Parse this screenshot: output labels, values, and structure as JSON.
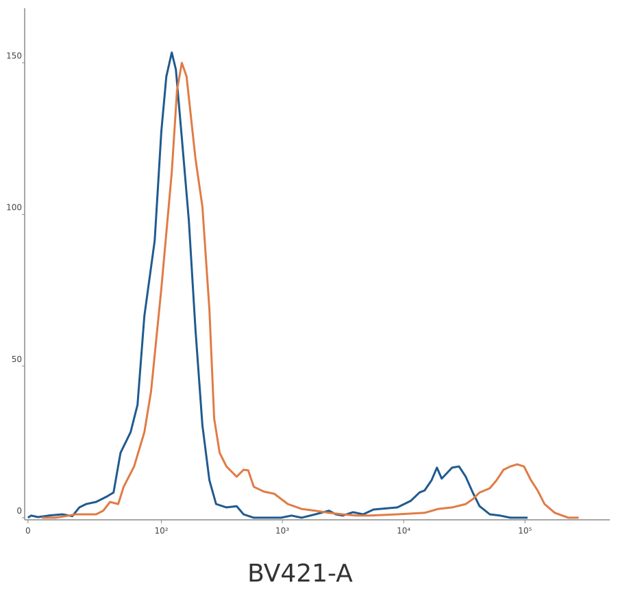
{
  "chart_data": {
    "type": "line",
    "x_label": "BV421-A",
    "xlim": [
      -1,
      500000
    ],
    "xticks": [
      0,
      {
        "value": 100,
        "label": "10²"
      },
      {
        "value": 1000,
        "label": "10³"
      },
      {
        "value": 10000,
        "label": "10⁴"
      },
      {
        "value": 100000,
        "label": "10⁵"
      }
    ],
    "ylim": [
      -0.7,
      168
    ],
    "yticks": [
      0,
      50,
      100,
      150
    ],
    "series": [
      {
        "color": "#1f5a8f",
        "x": [
          0,
          1,
          3.1,
          6.4,
          11.2,
          15.1,
          18.2,
          21.5,
          27,
          34,
          39,
          45,
          55,
          63,
          72,
          88,
          100,
          110,
          122,
          132,
          148,
          169,
          192,
          219,
          250,
          284,
          346,
          420,
          479,
          581,
          975,
          1190,
          1440,
          1870,
          2420,
          2760,
          3140,
          3820,
          4640,
          5640,
          8880,
          11500,
          13500,
          14900,
          17000,
          18800,
          20600,
          25100,
          28600,
          32500,
          37100,
          42200,
          51300,
          62300,
          75700,
          105000
        ],
        "values": [
          0,
          0.7,
          0.2,
          0.7,
          1.1,
          0.5,
          3.4,
          4.5,
          5.2,
          7,
          8.3,
          21.4,
          28.2,
          37.2,
          66.5,
          91.4,
          127.5,
          145.5,
          153.4,
          147.8,
          125.2,
          98.1,
          62,
          30.5,
          12.4,
          4.5,
          3.4,
          3.8,
          1.1,
          0,
          0,
          0.7,
          0,
          1.1,
          2.3,
          1.1,
          0.7,
          1.8,
          1.1,
          2.7,
          3.4,
          5.6,
          8.3,
          9,
          12.4,
          16.5,
          12.9,
          16.5,
          16.9,
          13.5,
          8.3,
          3.8,
          1.1,
          0.7,
          0,
          0
        ]
      },
      {
        "color": "#e07b45",
        "x": [
          4.2,
          8.7,
          13.8,
          16.6,
          27,
          31.5,
          36.3,
          42.9,
          47.9,
          58.9,
          72,
          82,
          100,
          122,
          135,
          148,
          162,
          192,
          219,
          250,
          274,
          304,
          346,
          420,
          479,
          523,
          581,
          705,
          858,
          1110,
          1440,
          1870,
          2420,
          3140,
          4090,
          5280,
          8880,
          14900,
          19300,
          25100,
          32500,
          37100,
          42200,
          51300,
          58400,
          66500,
          75700,
          86300,
          98200,
          112000,
          127000,
          145000,
          176000,
          228000,
          277000
        ],
        "values": [
          0,
          0,
          0.7,
          1.1,
          1.1,
          2.3,
          5.2,
          4.5,
          10.2,
          16.9,
          28.2,
          41.7,
          75.6,
          113.9,
          141,
          150,
          145.5,
          118.4,
          102.6,
          68.8,
          32.7,
          21.4,
          16.9,
          13.5,
          15.8,
          15.6,
          10.2,
          8.6,
          7.9,
          4.5,
          2.9,
          2.3,
          1.6,
          1.1,
          0.7,
          0.7,
          1.1,
          1.6,
          2.9,
          3.4,
          4.5,
          6.1,
          8.3,
          9.7,
          12.4,
          15.8,
          16.9,
          17.6,
          16.9,
          12.4,
          9,
          4.5,
          1.6,
          0,
          0
        ]
      }
    ]
  }
}
